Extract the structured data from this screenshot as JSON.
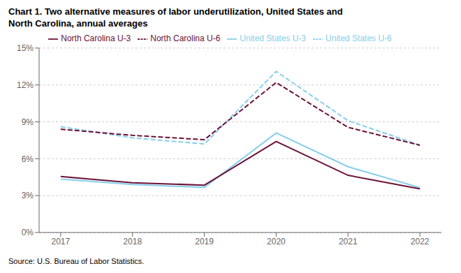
{
  "chart_data": {
    "type": "line",
    "title": "Chart 1. Two alternative measures of labor underutilization, United States and\nNorth Carolina, annual averages",
    "annotations": [
      "Source: U.S. Bureau of Labor Statistics."
    ],
    "x": [
      2017,
      2018,
      2019,
      2020,
      2021,
      2022
    ],
    "series": [
      {
        "name": "United States U-3",
        "color": "#87CEEB",
        "line_style": "solid",
        "values": [
          4.35,
          3.9,
          3.67,
          8.1,
          5.35,
          3.65
        ]
      },
      {
        "name": "United States U-6",
        "color": "#87CEEB",
        "line_style": "dashed",
        "values": [
          8.6,
          7.7,
          7.2,
          13.1,
          9.1,
          7.1
        ]
      },
      {
        "name": "North Carolina U-3",
        "color": "#6B1237",
        "line_style": "solid",
        "values": [
          4.55,
          4.05,
          3.85,
          7.4,
          4.65,
          3.55
        ]
      },
      {
        "name": "North Carolina U-6",
        "color": "#6B1237",
        "line_style": "dashed",
        "values": [
          8.4,
          7.9,
          7.55,
          12.2,
          8.55,
          7.1
        ]
      }
    ],
    "xlim": [
      2016.7,
      2022.3
    ],
    "xticks": [
      2017,
      2018,
      2019,
      2020,
      2021,
      2022
    ],
    "ylim": [
      0,
      15
    ],
    "yticks": [
      {
        "value": 0,
        "label": "0%"
      },
      {
        "value": 3,
        "label": "3%"
      },
      {
        "value": 6,
        "label": "6%"
      },
      {
        "value": 9,
        "label": "9%"
      },
      {
        "value": 12,
        "label": "12%"
      },
      {
        "value": 15,
        "label": "15%"
      }
    ],
    "grid": true,
    "legend": "top"
  }
}
